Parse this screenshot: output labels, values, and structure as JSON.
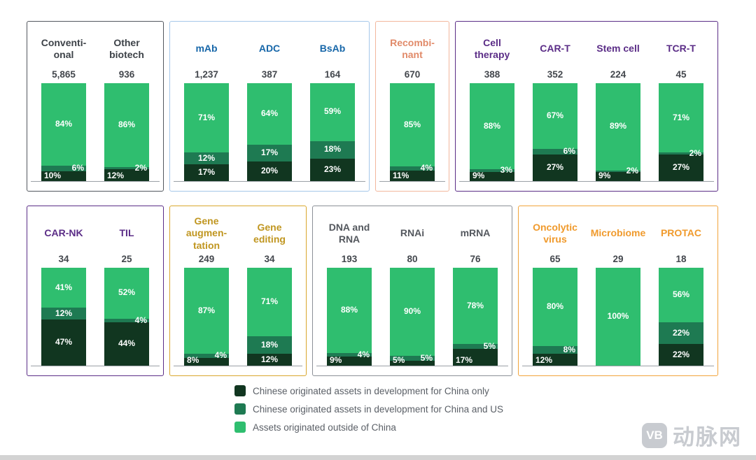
{
  "colors": {
    "china_only": "#113620",
    "china_and_us": "#1e7a52",
    "outside_china": "#2fbe6f"
  },
  "watermark": {
    "logo_text": "VB",
    "brand_text": "动脉网"
  },
  "chart_data": {
    "type": "bar",
    "subtype": "stacked-100-percent",
    "stack_order_bottom_to_top": [
      "china_only",
      "china_and_us",
      "outside_china"
    ],
    "legend_position": "bottom-center",
    "legend": [
      {
        "key": "china_only",
        "label": "Chinese originated assets in development for China only"
      },
      {
        "key": "china_and_us",
        "label": "Chinese originated assets in development for China and US"
      },
      {
        "key": "outside_china",
        "label": "Assets originated outside of China"
      }
    ],
    "groups": [
      {
        "name": "conventional-and-other-biotech",
        "row": 1,
        "accent": "#53585f",
        "label_color": "#3d4248",
        "bars": [
          {
            "category": "Conventi-\nonal",
            "total": "5,865",
            "values": {
              "outside_china": 84,
              "china_and_us": 6,
              "china_only": 10
            }
          },
          {
            "category": "Other\nbiotech",
            "total": "936",
            "values": {
              "outside_china": 86,
              "china_and_us": 2,
              "china_only": 12
            }
          }
        ]
      },
      {
        "name": "antibodies",
        "row": 1,
        "accent": "#a5c7e9",
        "label_color": "#1767a9",
        "bars": [
          {
            "category": "mAb",
            "total": "1,237",
            "values": {
              "outside_china": 71,
              "china_and_us": 12,
              "china_only": 17
            }
          },
          {
            "category": "ADC",
            "total": "387",
            "values": {
              "outside_china": 64,
              "china_and_us": 17,
              "china_only": 20
            }
          },
          {
            "category": "BsAb",
            "total": "164",
            "values": {
              "outside_china": 59,
              "china_and_us": 18,
              "china_only": 23
            }
          }
        ]
      },
      {
        "name": "recombinant",
        "row": 1,
        "accent": "#f2b79d",
        "label_color": "#e18a69",
        "bars": [
          {
            "category": "Recombi-\nnant",
            "total": "670",
            "values": {
              "outside_china": 85,
              "china_and_us": 4,
              "china_only": 11
            }
          }
        ]
      },
      {
        "name": "cell-therapy",
        "row": 1,
        "accent": "#5b2d87",
        "label_color": "#5b2d87",
        "bars": [
          {
            "category": "Cell\ntherapy",
            "total": "388",
            "values": {
              "outside_china": 88,
              "china_and_us": 3,
              "china_only": 9
            }
          },
          {
            "category": "CAR-T",
            "total": "352",
            "values": {
              "outside_china": 67,
              "china_and_us": 6,
              "china_only": 27
            }
          },
          {
            "category": "Stem cell",
            "total": "224",
            "values": {
              "outside_china": 89,
              "china_and_us": 2,
              "china_only": 9
            }
          },
          {
            "category": "TCR-T",
            "total": "45",
            "values": {
              "outside_china": 71,
              "china_and_us": 2,
              "china_only": 27
            }
          }
        ]
      },
      {
        "name": "car-nk-til",
        "row": 2,
        "accent": "#5b2d87",
        "label_color": "#5b2d87",
        "bars": [
          {
            "category": "CAR-NK",
            "total": "34",
            "values": {
              "outside_china": 41,
              "china_and_us": 12,
              "china_only": 47
            }
          },
          {
            "category": "TIL",
            "total": "25",
            "values": {
              "outside_china": 52,
              "china_and_us": 4,
              "china_only": 44
            }
          }
        ]
      },
      {
        "name": "gene-therapy",
        "row": 2,
        "accent": "#d9a72d",
        "label_color": "#c09620",
        "bars": [
          {
            "category": "Gene\naugmen-\ntation",
            "total": "249",
            "values": {
              "outside_china": 87,
              "china_and_us": 4,
              "china_only": 8
            }
          },
          {
            "category": "Gene\nediting",
            "total": "34",
            "values": {
              "outside_china": 71,
              "china_and_us": 18,
              "china_only": 12
            }
          }
        ]
      },
      {
        "name": "nucleic-acid",
        "row": 2,
        "accent": "#8b9097",
        "label_color": "#54585e",
        "bars": [
          {
            "category": "DNA and\nRNA",
            "total": "193",
            "values": {
              "outside_china": 88,
              "china_and_us": 4,
              "china_only": 9
            }
          },
          {
            "category": "RNAi",
            "total": "80",
            "values": {
              "outside_china": 90,
              "china_and_us": 5,
              "china_only": 5
            }
          },
          {
            "category": "mRNA",
            "total": "76",
            "values": {
              "outside_china": 78,
              "china_and_us": 5,
              "china_only": 17
            }
          }
        ]
      },
      {
        "name": "other-novel-modalities",
        "row": 2,
        "accent": "#f2a43b",
        "label_color": "#f09a2c",
        "bars": [
          {
            "category": "Oncolytic\nvirus",
            "total": "65",
            "values": {
              "outside_china": 80,
              "china_and_us": 8,
              "china_only": 12
            }
          },
          {
            "category": "Microbiome",
            "total": "29",
            "values": {
              "outside_china": 100,
              "china_and_us": 0,
              "china_only": 0
            }
          },
          {
            "category": "PROTAC",
            "total": "18",
            "values": {
              "outside_china": 56,
              "china_and_us": 22,
              "china_only": 22
            }
          }
        ]
      }
    ]
  }
}
